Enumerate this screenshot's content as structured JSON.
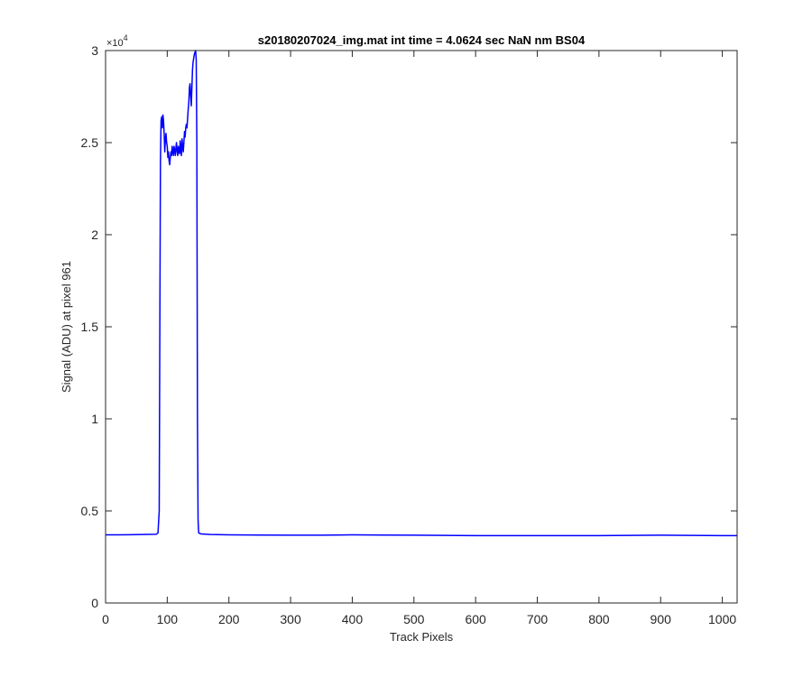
{
  "chart_data": {
    "type": "line",
    "title": "s20180207024_img.mat int time = 4.0624 sec  NaN nm BS04",
    "xlabel": "Track Pixels",
    "ylabel": "Signal (ADU) at pixel 961",
    "xlim": [
      0,
      1024
    ],
    "ylim": [
      0,
      30000
    ],
    "y_exponent_label": "×10",
    "y_exponent_power": "4",
    "xticks": [
      "0",
      "100",
      "200",
      "300",
      "400",
      "500",
      "600",
      "700",
      "800",
      "900",
      "1000"
    ],
    "yticks": [
      "0",
      "0.5",
      "1",
      "1.5",
      "2",
      "2.5",
      "3"
    ],
    "grid": false,
    "series": [
      {
        "color": "#0000ff",
        "points": [
          [
            0,
            3700
          ],
          [
            20,
            3700
          ],
          [
            40,
            3710
          ],
          [
            60,
            3720
          ],
          [
            82,
            3730
          ],
          [
            85,
            3800
          ],
          [
            87,
            5000
          ],
          [
            88,
            15000
          ],
          [
            89,
            24000
          ],
          [
            90,
            26200
          ],
          [
            91,
            26400
          ],
          [
            92,
            25800
          ],
          [
            93,
            26500
          ],
          [
            94,
            26200
          ],
          [
            95,
            25500
          ],
          [
            96,
            24500
          ],
          [
            97,
            25200
          ],
          [
            98,
            25500
          ],
          [
            99,
            25000
          ],
          [
            100,
            24800
          ],
          [
            101,
            24200
          ],
          [
            102,
            24500
          ],
          [
            103,
            24000
          ],
          [
            104,
            23800
          ],
          [
            105,
            24200
          ],
          [
            106,
            24500
          ],
          [
            107,
            24300
          ],
          [
            108,
            24800
          ],
          [
            109,
            24500
          ],
          [
            110,
            24300
          ],
          [
            111,
            24800
          ],
          [
            112,
            24600
          ],
          [
            113,
            24300
          ],
          [
            114,
            24700
          ],
          [
            115,
            25000
          ],
          [
            116,
            24500
          ],
          [
            117,
            24300
          ],
          [
            118,
            24800
          ],
          [
            119,
            24500
          ],
          [
            120,
            24400
          ],
          [
            121,
            25100
          ],
          [
            122,
            24600
          ],
          [
            123,
            24300
          ],
          [
            124,
            25200
          ],
          [
            125,
            24800
          ],
          [
            126,
            24500
          ],
          [
            127,
            25000
          ],
          [
            128,
            25600
          ],
          [
            129,
            25300
          ],
          [
            130,
            25800
          ],
          [
            131,
            26000
          ],
          [
            132,
            25800
          ],
          [
            133,
            26300
          ],
          [
            134,
            26800
          ],
          [
            135,
            27200
          ],
          [
            136,
            28000
          ],
          [
            137,
            28200
          ],
          [
            138,
            27500
          ],
          [
            139,
            27000
          ],
          [
            140,
            28000
          ],
          [
            141,
            29000
          ],
          [
            142,
            29400
          ],
          [
            143,
            29600
          ],
          [
            144,
            29800
          ],
          [
            145,
            29900
          ],
          [
            146,
            30000
          ],
          [
            147,
            29500
          ],
          [
            148,
            25000
          ],
          [
            149,
            10000
          ],
          [
            150,
            4500
          ],
          [
            151,
            3800
          ],
          [
            155,
            3750
          ],
          [
            170,
            3720
          ],
          [
            200,
            3700
          ],
          [
            250,
            3690
          ],
          [
            300,
            3680
          ],
          [
            350,
            3680
          ],
          [
            400,
            3700
          ],
          [
            450,
            3690
          ],
          [
            500,
            3680
          ],
          [
            550,
            3670
          ],
          [
            600,
            3660
          ],
          [
            650,
            3660
          ],
          [
            700,
            3660
          ],
          [
            750,
            3660
          ],
          [
            800,
            3660
          ],
          [
            850,
            3670
          ],
          [
            900,
            3680
          ],
          [
            950,
            3670
          ],
          [
            1000,
            3660
          ],
          [
            1024,
            3660
          ]
        ]
      }
    ]
  }
}
